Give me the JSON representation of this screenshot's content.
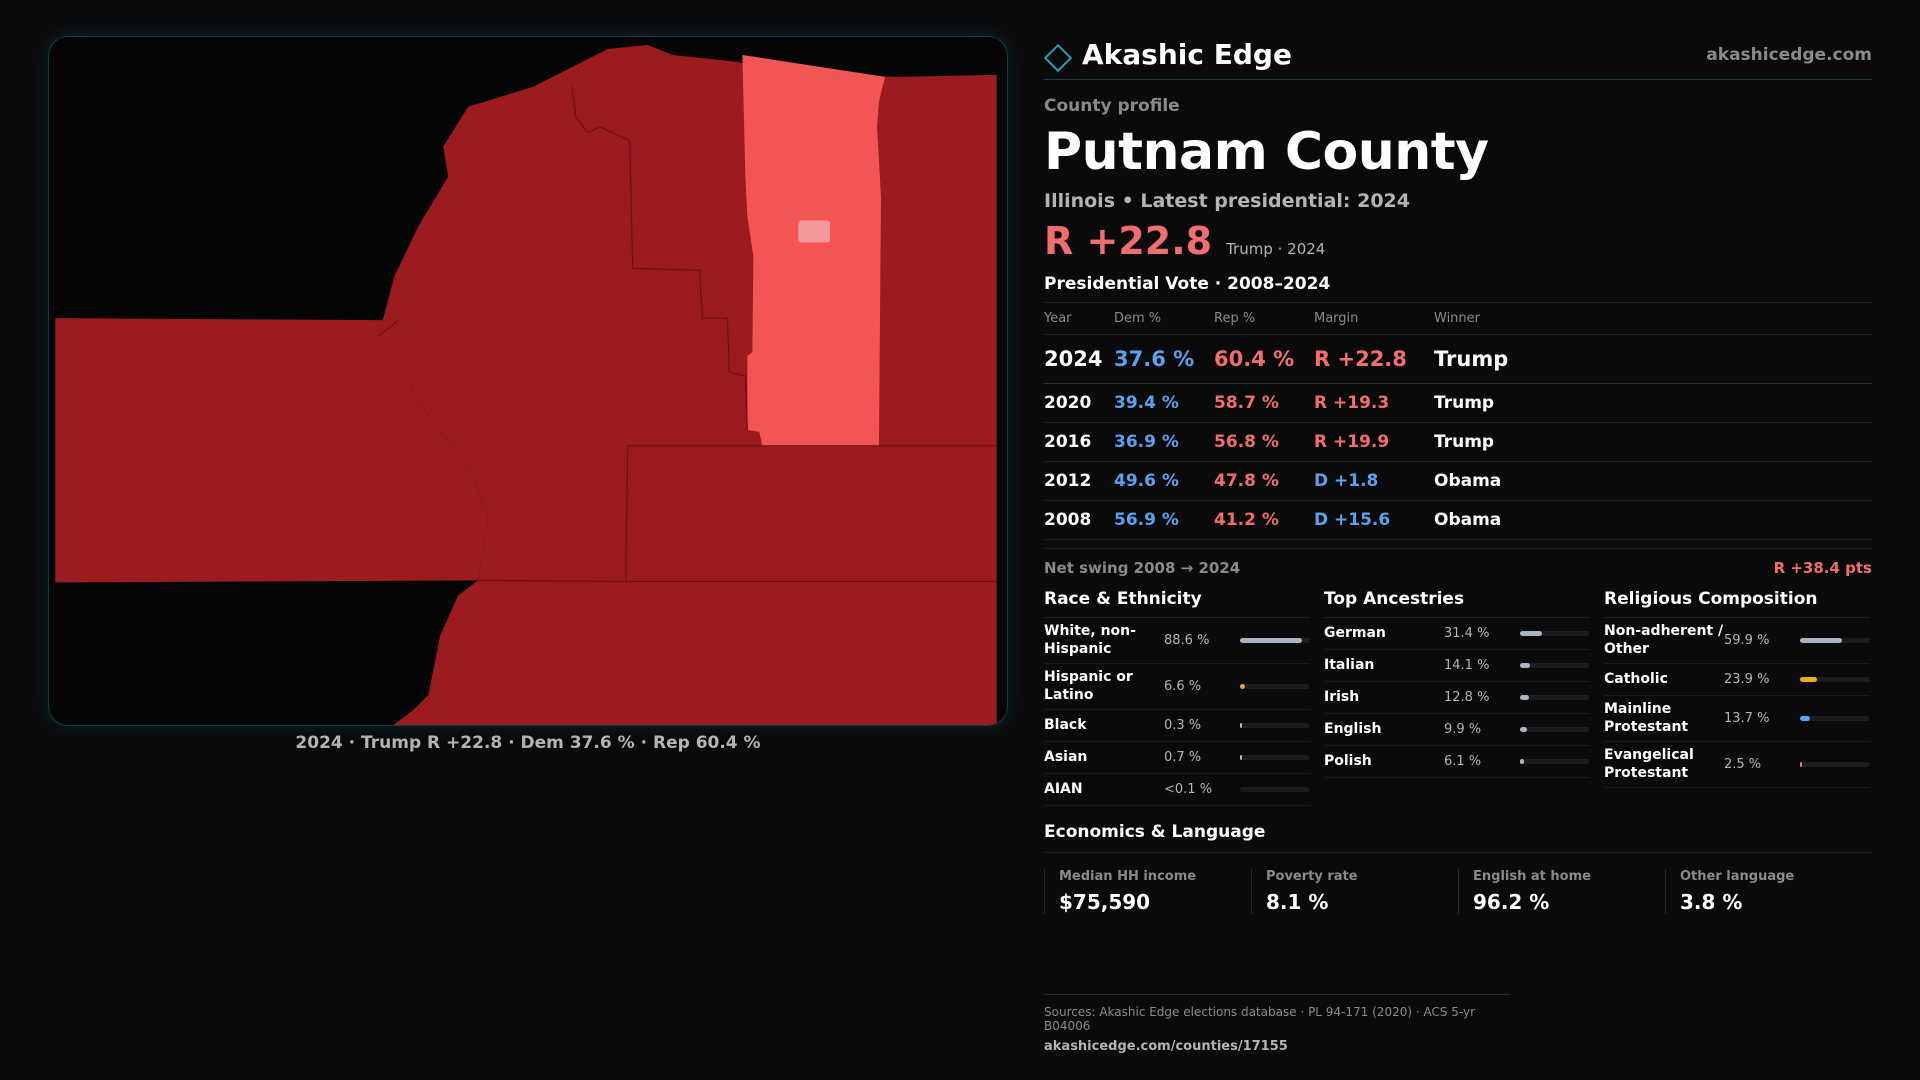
{
  "brand": {
    "name": "Akashic Edge",
    "url": "akashicedge.com"
  },
  "profile": {
    "eyebrow": "County profile",
    "title": "Putnam County",
    "subtitle": "Illinois • Latest presidential: 2024",
    "headline_margin": "R +22.8",
    "headline_note": "Trump · 2024"
  },
  "map": {
    "caption": "2024 · Trump R +22.8 · Dem 37.6 % · Rep 60.4 %",
    "colors": {
      "strong_rep": "#9b1b1f",
      "lean_rep": "#f25555",
      "light": "#f59a9a",
      "background": "#050506"
    }
  },
  "votes": {
    "title": "Presidential Vote · 2008–2024",
    "headers": {
      "year": "Year",
      "dem": "Dem %",
      "rep": "Rep %",
      "margin": "Margin",
      "winner": "Winner"
    },
    "rows": [
      {
        "year": "2024",
        "dem": "37.6 %",
        "rep": "60.4 %",
        "margin": "R +22.8",
        "party": "r",
        "winner": "Trump"
      },
      {
        "year": "2020",
        "dem": "39.4 %",
        "rep": "58.7 %",
        "margin": "R +19.3",
        "party": "r",
        "winner": "Trump"
      },
      {
        "year": "2016",
        "dem": "36.9 %",
        "rep": "56.8 %",
        "margin": "R +19.9",
        "party": "r",
        "winner": "Trump"
      },
      {
        "year": "2012",
        "dem": "49.6 %",
        "rep": "47.8 %",
        "margin": "D +1.8",
        "party": "d",
        "winner": "Obama"
      },
      {
        "year": "2008",
        "dem": "56.9 %",
        "rep": "41.2 %",
        "margin": "D +15.6",
        "party": "d",
        "winner": "Obama"
      }
    ],
    "swing_label": "Net swing 2008 → 2024",
    "swing_value": "R +38.4 pts"
  },
  "race": {
    "title": "Race & Ethnicity",
    "items": [
      {
        "label": "White, non-Hispanic",
        "value": "88.6 %",
        "fraction": 0.886,
        "color": "#aab4c4"
      },
      {
        "label": "Hispanic or Latino",
        "value": "6.6 %",
        "fraction": 0.066,
        "color": "#e0a030"
      },
      {
        "label": "Black",
        "value": "0.3 %",
        "fraction": 0.003,
        "color": "#aab4c4"
      },
      {
        "label": "Asian",
        "value": "0.7 %",
        "fraction": 0.007,
        "color": "#aab4c4"
      },
      {
        "label": "AIAN",
        "value": "<0.1 %",
        "fraction": 0.0,
        "color": "#aab4c4"
      }
    ]
  },
  "ancestry": {
    "title": "Top Ancestries",
    "items": [
      {
        "label": "German",
        "value": "31.4 %",
        "fraction": 0.314,
        "color": "#aab4c4"
      },
      {
        "label": "Italian",
        "value": "14.1 %",
        "fraction": 0.141,
        "color": "#aab4c4"
      },
      {
        "label": "Irish",
        "value": "12.8 %",
        "fraction": 0.128,
        "color": "#aab4c4"
      },
      {
        "label": "English",
        "value": "9.9 %",
        "fraction": 0.099,
        "color": "#aab4c4"
      },
      {
        "label": "Polish",
        "value": "6.1 %",
        "fraction": 0.061,
        "color": "#aab4c4"
      }
    ]
  },
  "religion": {
    "title": "Religious Composition",
    "items": [
      {
        "label": "Non-adherent / Other",
        "value": "59.9 %",
        "fraction": 0.599,
        "color": "#aab4c4"
      },
      {
        "label": "Catholic",
        "value": "23.9 %",
        "fraction": 0.239,
        "color": "#e8b020"
      },
      {
        "label": "Mainline Protestant",
        "value": "13.7 %",
        "fraction": 0.137,
        "color": "#5aa2ef"
      },
      {
        "label": "Evangelical Protestant",
        "value": "2.5 %",
        "fraction": 0.025,
        "color": "#f26d6d"
      }
    ]
  },
  "economics": {
    "title": "Economics & Language",
    "items": [
      {
        "label": "Median HH income",
        "value": "$75,590"
      },
      {
        "label": "Poverty rate",
        "value": "8.1 %"
      },
      {
        "label": "English at home",
        "value": "96.2 %"
      },
      {
        "label": "Other language",
        "value": "3.8 %"
      }
    ]
  },
  "sources": {
    "text": "Sources: Akashic Edge elections database · PL 94-171 (2020) · ACS 5-yr B04006",
    "url": "akashicedge.com/counties/17155"
  }
}
